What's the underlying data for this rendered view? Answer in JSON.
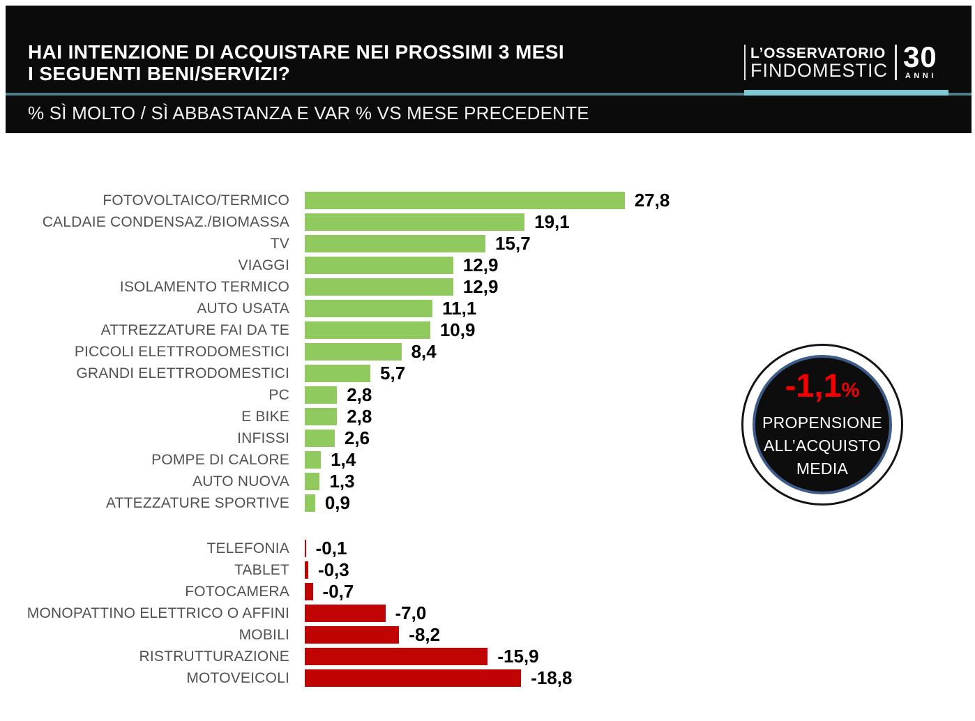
{
  "header": {
    "title_line1": "HAI INTENZIONE DI ACQUISTARE NEI PROSSIMI 3 MESI",
    "title_line2": "I SEGUENTI BENI/SERVIZI?",
    "subtitle": "% SÌ MOLTO / SÌ ABBASTANZA E VAR % VS MESE PRECEDENTE"
  },
  "logo": {
    "top": "L’OSSERVATORIO",
    "bottom": "FINDOMESTIC",
    "years_number": "30",
    "years_label": "ANNI"
  },
  "badge": {
    "value": "-1,1",
    "percent": "%",
    "lines": [
      "PROPENSIONE",
      "ALL’ACQUISTO",
      "MEDIA"
    ],
    "value_color": "#f40000"
  },
  "colors": {
    "positive_bar": "#90ca5f",
    "negative_bar": "#c00404",
    "header_bg": "#0b0b0b",
    "divider_teal": "#4a7e8b",
    "divider_teal_light": "#7bc9d2",
    "label_gray": "#515151"
  },
  "chart_data": {
    "type": "bar",
    "orientation": "horizontal",
    "title": "HAI INTENZIONE DI ACQUISTARE NEI PROSSIMI 3 MESI I SEGUENTI BENI/SERVIZI?",
    "subtitle": "% SÌ MOLTO / SÌ ABBASTANZA E VAR % VS MESE PRECEDENTE",
    "unit": "var % vs mese precedente",
    "grid": false,
    "axes_visible": false,
    "value_labels": "end-of-bar, italian decimal comma, 1 decimal",
    "xlim": [
      0,
      29
    ],
    "series": [
      {
        "name": "variazione-positiva",
        "color": "#90ca5f",
        "categories": [
          "FOTOVOLTAICO/TERMICO",
          "CALDAIE CONDENSAZ./BIOMASSA",
          "TV",
          "VIAGGI",
          "ISOLAMENTO TERMICO",
          "AUTO USATA",
          "ATTREZZATURE FAI DA TE",
          "PICCOLI ELETTRODOMESTICI",
          "GRANDI ELETTRODOMESTICI",
          "PC",
          "E BIKE",
          "INFISSI",
          "POMPE DI CALORE",
          "AUTO NUOVA",
          "ATTEZZATURE SPORTIVE"
        ],
        "values": [
          27.8,
          19.1,
          15.7,
          12.9,
          12.9,
          11.1,
          10.9,
          8.4,
          5.7,
          2.8,
          2.8,
          2.6,
          1.4,
          1.3,
          0.9
        ]
      },
      {
        "name": "variazione-negativa",
        "color": "#c00404",
        "categories": [
          "TELEFONIA",
          "TABLET",
          "FOTOCAMERA",
          "MONOPATTINO ELETTRICO O AFFINI",
          "MOBILI",
          "RISTRUTTURAZIONE",
          "MOTOVEICOLI"
        ],
        "values": [
          -0.1,
          -0.3,
          -0.7,
          -7.0,
          -8.2,
          -15.9,
          -18.8
        ]
      }
    ]
  }
}
